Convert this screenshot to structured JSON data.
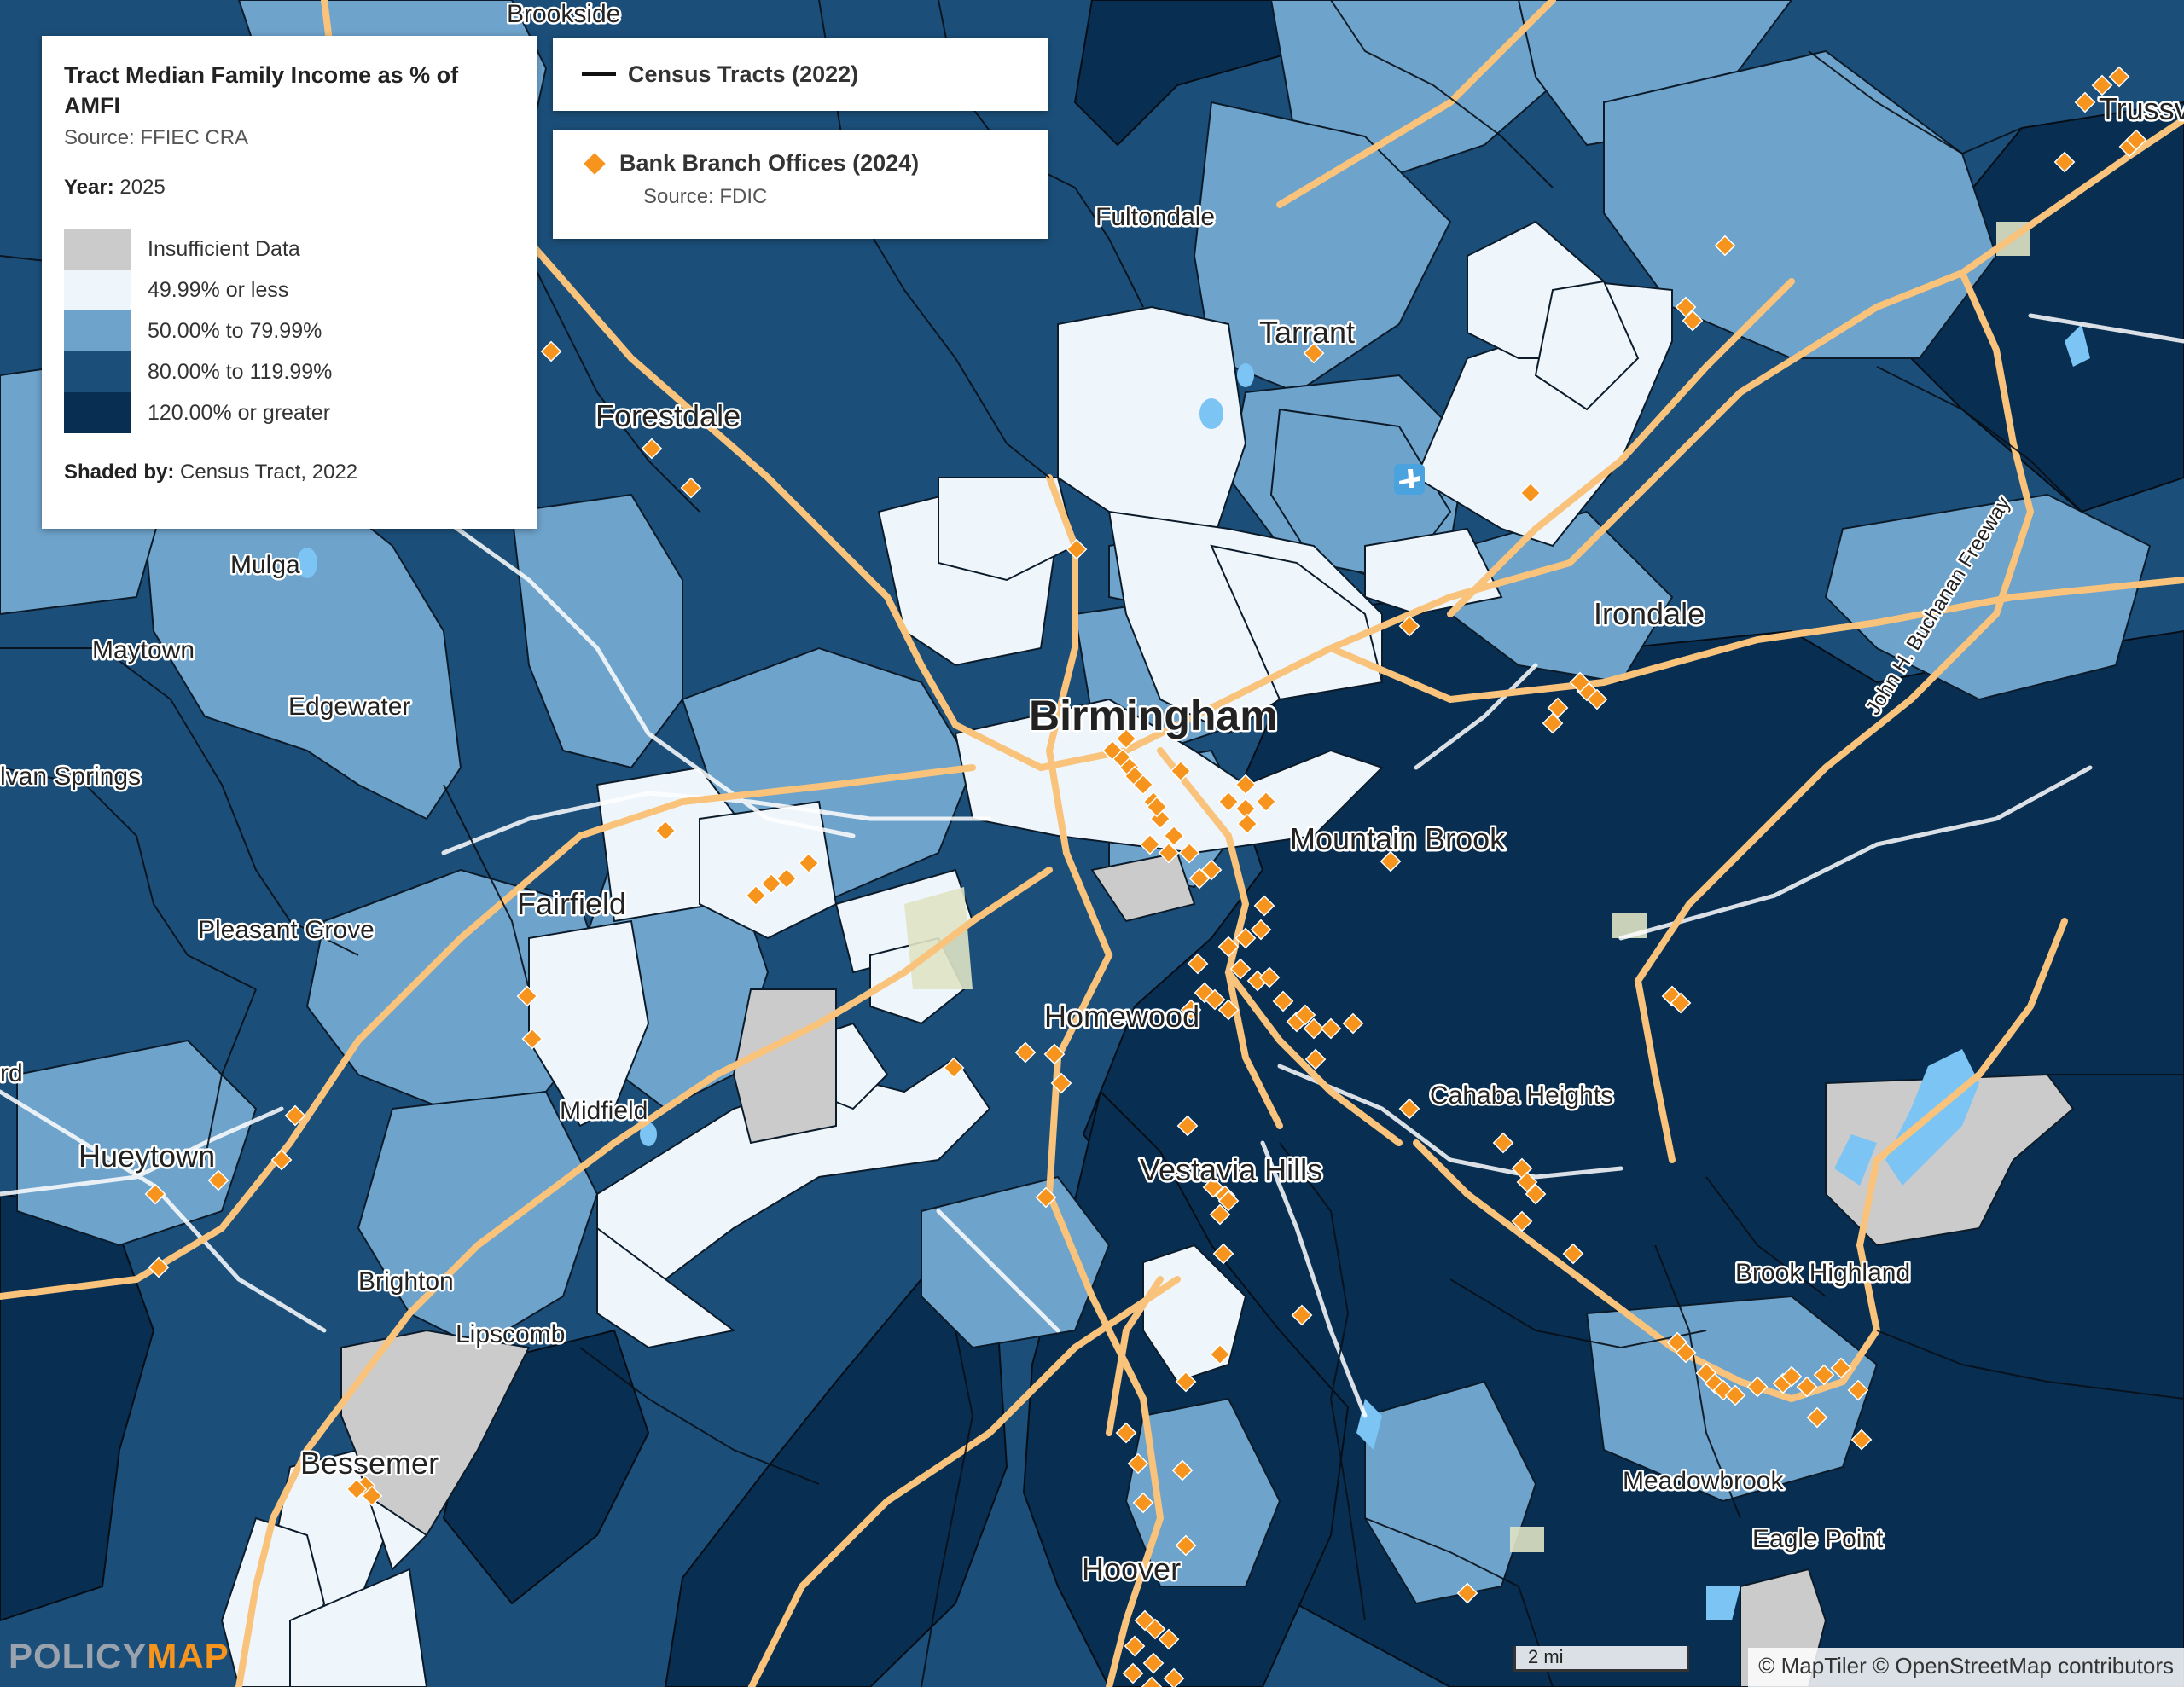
{
  "legend_income": {
    "title": "Tract Median Family Income as % of AMFI",
    "source": "Source: FFIEC CRA",
    "year_label": "Year:",
    "year_value": "2025",
    "classes": [
      {
        "label": "Insufficient Data",
        "color": "#cbcbcb"
      },
      {
        "label": "49.99% or less",
        "color": "#eef5fb"
      },
      {
        "label": "50.00% to 79.99%",
        "color": "#6ea3cb"
      },
      {
        "label": "80.00% to 119.99%",
        "color": "#1b4f7a"
      },
      {
        "label": "120.00% or greater",
        "color": "#082f52"
      }
    ],
    "shaded_by_label": "Shaded by:",
    "shaded_by_value": "Census Tract, 2022"
  },
  "legend_tracts": {
    "label": "Census Tracts (2022)",
    "line_color": "#111111"
  },
  "legend_banks": {
    "label": "Bank Branch Offices (2024)",
    "source": "Source: FDIC",
    "marker_color": "#f7941d"
  },
  "places": {
    "brookside": "Brookside",
    "trussville": "Trussv",
    "fultondale": "Fultondale",
    "tarrant": "Tarrant",
    "forestdale": "Forestdale",
    "mulga": "Mulga",
    "maytown": "Maytown",
    "irondale": "Irondale",
    "edgewater": "Edgewater",
    "birmingham": "Birmingham",
    "sylvan_springs": "lvan Springs",
    "mountain_brook": "Mountain Brook",
    "fairfield": "Fairfield",
    "pleasant_grove": "Pleasant Grove",
    "homewood": "Homewood",
    "rd": "rd",
    "cahaba_heights": "Cahaba Heights",
    "midfield": "Midfield",
    "hueytown": "Hueytown",
    "vestavia_hills": "Vestavia Hills",
    "brighton": "Brighton",
    "brook_highland": "Brook Highland",
    "lipscomb": "Lipscomb",
    "bessemer": "Bessemer",
    "meadowbrook": "Meadowbrook",
    "eagle_point": "Eagle Point",
    "hoover": "Hoover"
  },
  "road_label": "John H. Buchanan Freeway",
  "scale_label": "2 mi",
  "attribution": "© MapTiler © OpenStreetMap contributors",
  "logo": {
    "part1": "POLICY",
    "part2": "MAP"
  },
  "colors": {
    "water": "#7cc4f4",
    "highway": "#f9c37c",
    "road": "#ffffff",
    "park": "#dfe3c4"
  }
}
